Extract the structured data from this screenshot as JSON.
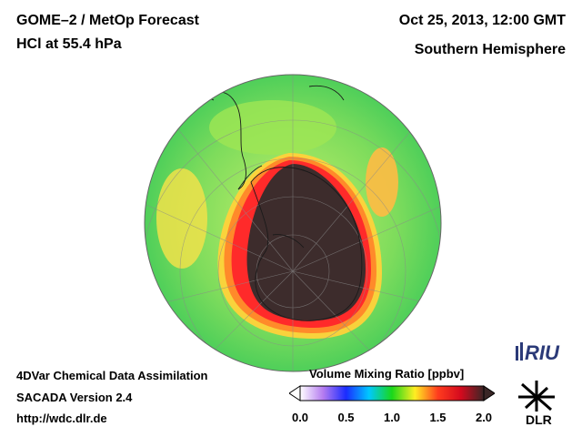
{
  "header": {
    "title_line1": "GOME–2 / MetOp Forecast",
    "title_line2": "HCl at 55.4 hPa",
    "date": "Oct 25, 2013, 12:00 GMT",
    "region": "Southern Hemisphere"
  },
  "footer": {
    "line1": "4DVar Chemical Data Assimilation",
    "line2": "SACADA Version 2.4",
    "url": "http://wdc.dlr.de"
  },
  "colorbar": {
    "label": "Volume Mixing Ratio [ppbv]",
    "ticks": [
      "0.0",
      "0.5",
      "1.0",
      "1.5",
      "2.0"
    ],
    "tick_values": [
      0.0,
      0.5,
      1.0,
      1.5,
      2.0
    ],
    "range": [
      0.0,
      2.0
    ],
    "colors": [
      "#ffffff",
      "#b57cf0",
      "#1a2cff",
      "#00c8ff",
      "#19d819",
      "#ffee22",
      "#ff3c1e",
      "#d40a1e",
      "#3a2626"
    ]
  },
  "logos": {
    "riu": "RIU",
    "dlr": "DLR"
  },
  "map": {
    "projection": "orthographic-south-pole",
    "ozone_hole_color": "#3d2c2c",
    "background_field_color": "#7be05a",
    "rim_color": "#ff2a2a"
  }
}
